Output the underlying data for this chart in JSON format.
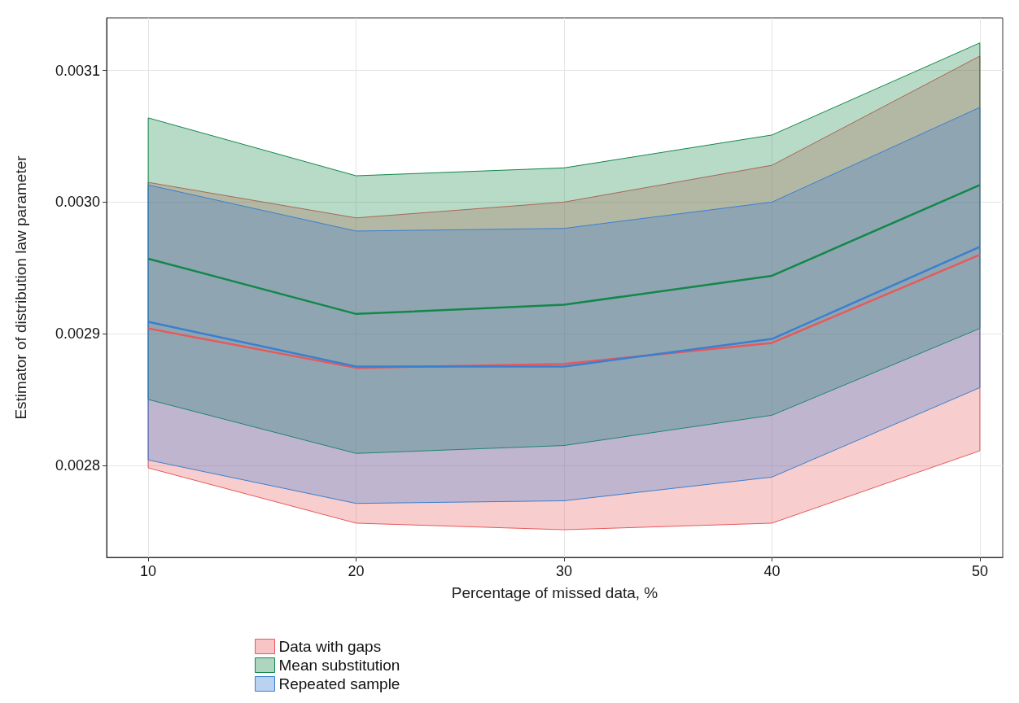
{
  "chart_data": {
    "type": "line",
    "xlabel": "Percentage of missed data, %",
    "ylabel": "Estimator of distribution law parameter",
    "x": [
      10,
      20,
      30,
      40,
      50
    ],
    "series": [
      {
        "name": "Data with gaps",
        "color": "#e8585a",
        "values": [
          0.002904,
          0.002874,
          0.002877,
          0.002893,
          0.00296
        ],
        "lower": [
          0.002798,
          0.002756,
          0.002751,
          0.002756,
          0.002811
        ],
        "upper": [
          0.003015,
          0.002988,
          0.003,
          0.003028,
          0.003111
        ]
      },
      {
        "name": "Mean substitution",
        "color": "#13874a",
        "values": [
          0.002957,
          0.002915,
          0.002922,
          0.002944,
          0.003013
        ],
        "lower": [
          0.00285,
          0.002809,
          0.002815,
          0.002838,
          0.002904
        ],
        "upper": [
          0.003064,
          0.00302,
          0.003026,
          0.003051,
          0.003121
        ]
      },
      {
        "name": "Repeated sample",
        "color": "#3a7fd0",
        "values": [
          0.002909,
          0.002875,
          0.002875,
          0.002896,
          0.002966
        ],
        "lower": [
          0.002804,
          0.002771,
          0.002773,
          0.002791,
          0.002859
        ],
        "upper": [
          0.003013,
          0.002978,
          0.00298,
          0.003,
          0.003072
        ]
      }
    ],
    "xlim": [
      8,
      51.1
    ],
    "xticks": [
      10,
      20,
      30,
      40,
      50
    ],
    "ylim": [
      0.00273,
      0.00314
    ],
    "yticks": [
      0.0028,
      0.0029,
      {
        "value": 0.003,
        "label": "0.0030"
      },
      0.0031
    ],
    "grid": true,
    "legend": "bottom left",
    "marker": "none",
    "line_style": "solid"
  }
}
